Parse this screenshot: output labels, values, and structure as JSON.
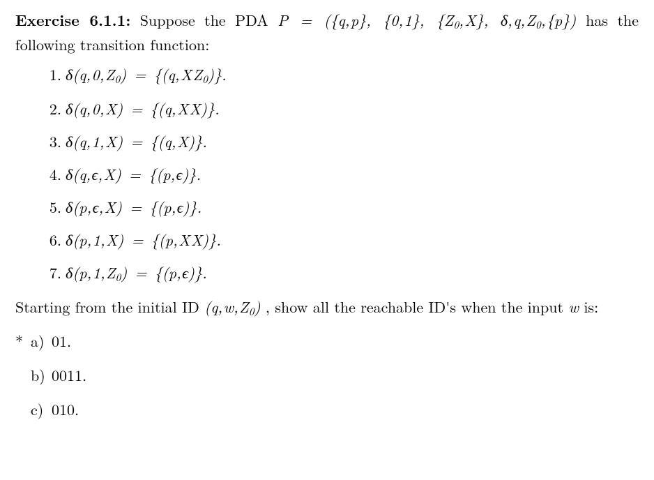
{
  "exercise": {
    "label": "Exercise 6.1.1:",
    "intro_part1": "Suppose the PDA ",
    "math_P_def": "P = ({q, p}, {0, 1}, {Z₀, X}, δ, q, Z₀, {p})",
    "intro_part2": " has the following transition function:"
  },
  "rules": [
    {
      "n": "1.",
      "body": "δ(q, 0, Z₀) = {(q, X Z₀)}."
    },
    {
      "n": "2.",
      "body": "δ(q, 0, X) = {(q, X X)}."
    },
    {
      "n": "3.",
      "body": "δ(q, 1, X) = {(q, X)}."
    },
    {
      "n": "4.",
      "body": "δ(q, ϵ, X) = {(p, ϵ)}."
    },
    {
      "n": "5.",
      "body": "δ(p, ϵ, X) = {(p, ϵ)}."
    },
    {
      "n": "6.",
      "body": "δ(p, 1, X) = {(p, X X)}."
    },
    {
      "n": "7.",
      "body": "δ(p, 1, Z₀) = {(p, ϵ)}."
    }
  ],
  "followup": {
    "part1": "Starting from the initial ID ",
    "id_math": "(q, w, Z₀)",
    "part2": ", show all the reachable ID's when the input ",
    "var": "w",
    "part3": " is:"
  },
  "parts": [
    {
      "star": "*",
      "label": "a)",
      "body": "01."
    },
    {
      "star": "",
      "label": "b)",
      "body": "0011."
    },
    {
      "star": "",
      "label": "c)",
      "body": "010."
    }
  ],
  "style": {
    "font_family": "Computer Modern / Times",
    "font_size_pt": 16,
    "text_color": "#000000",
    "background_color": "#ffffff"
  }
}
